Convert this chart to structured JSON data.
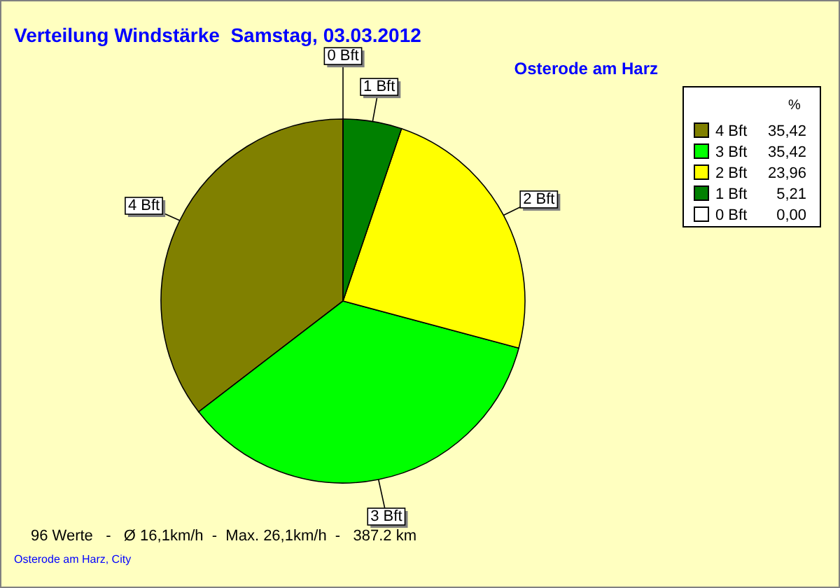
{
  "chart_data": {
    "type": "pie",
    "title": "Verteilung Windstärke  Samstag, 03.03.2012",
    "subtitle": "Osterode am Harz",
    "legend_title": "%",
    "categories": [
      "4 Bft",
      "3 Bft",
      "2 Bft",
      "1 Bft",
      "0 Bft"
    ],
    "values": [
      35.42,
      35.42,
      23.96,
      5.21,
      0.0
    ],
    "value_labels": [
      "35,42",
      "35,42",
      "23,96",
      "5,21",
      "0,00"
    ],
    "colors": [
      "#808000",
      "#00ff00",
      "#ffff00",
      "#008000",
      "#ffffff"
    ],
    "legend": "top right",
    "annotations": [
      "96 Werte   -   Ø 16,1km/h  -  Max. 26,1km/h  -   387.2 km",
      "Osterode am Harz, City"
    ]
  }
}
